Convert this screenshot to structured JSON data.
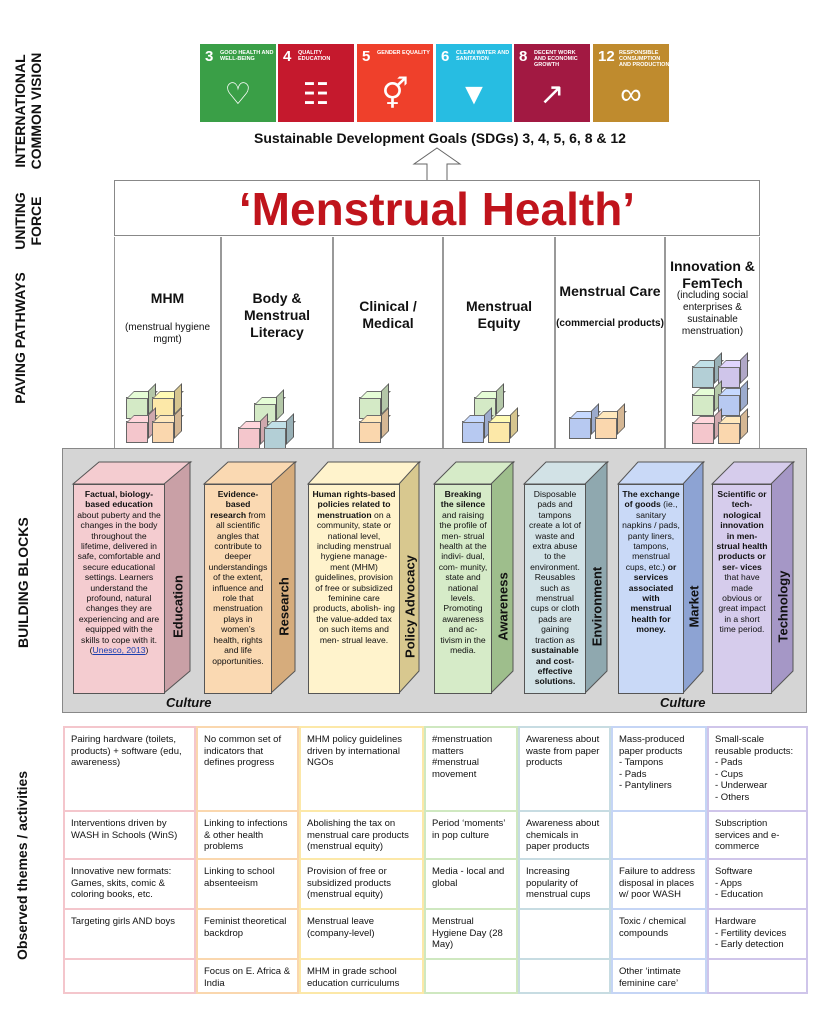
{
  "side_labels": {
    "vision": "INTERNATIONAL COMMON VISION",
    "force": "UNITING FORCE",
    "pathways": "PAVING PATHWAYS",
    "blocks": "BUILDING BLOCKS",
    "themes": "Observed themes / activities"
  },
  "sdgs": [
    {
      "num": "3",
      "text": "GOOD HEALTH AND WELL-BEING",
      "icon": "heartbeat-icon",
      "glyph": "♡",
      "color": "#3A9F47"
    },
    {
      "num": "4",
      "text": "QUALITY EDUCATION",
      "icon": "book-icon",
      "glyph": "☷",
      "color": "#C5192D"
    },
    {
      "num": "5",
      "text": "GENDER EQUALITY",
      "icon": "gender-icon",
      "glyph": "⚥",
      "color": "#EF402B"
    },
    {
      "num": "6",
      "text": "CLEAN WATER AND SANITATION",
      "icon": "water-drop-icon",
      "glyph": "▼",
      "color": "#27BDE2"
    },
    {
      "num": "8",
      "text": "DECENT WORK AND ECONOMIC GROWTH",
      "icon": "growth-chart-icon",
      "glyph": "↗",
      "color": "#A21942"
    },
    {
      "num": "12",
      "text": "RESPONSIBLE CONSUMPTION AND PRODUCTION",
      "icon": "infinity-icon",
      "glyph": "∞",
      "color": "#BF8B2E"
    }
  ],
  "sdg_caption": "Sustainable Development Goals (SDGs) 3, 4, 5, 6, 8 & 12",
  "banner_title": "‘Menstrual Health’",
  "pillars": [
    {
      "title": "MHM",
      "sub": "(menstrual hygiene mgmt)"
    },
    {
      "title": "Body & Menstrual Literacy",
      "sub": ""
    },
    {
      "title": "Clinical / Medical",
      "sub": ""
    },
    {
      "title": "Menstrual Equity",
      "sub": ""
    },
    {
      "title": "Menstrual Care",
      "sub": "(commercial products)"
    },
    {
      "title": "Innovation & FemTech",
      "sub": "(including social enterprises & sustainable menstruation)"
    }
  ],
  "blocks": [
    {
      "label": "Education",
      "color": "#F4CCD0",
      "side": "#C9A0A6",
      "bold": "Factual, biology-based education",
      "text": " about puberty and the changes in the body throughout the lifetime, delivered in safe, comfortable and secure educational settings. Learners understand the profound, natural changes they are experiencing and are equipped with the skills to cope with it. (",
      "link": "Unesco, 2013",
      "tail": ")"
    },
    {
      "label": "Research",
      "color": "#FAD9B2",
      "side": "#D6AC7C",
      "bold": "Evidence-based research",
      "text": " from all scientific angles that contribute to deeper understandings of the extent, influence and role that menstruation plays in women’s health, rights and life opportunities.",
      "link": "",
      "tail": ""
    },
    {
      "label": "Policy Advocacy",
      "color": "#FFF3CC",
      "side": "#D8C88F",
      "bold": "Human rights-based policies related to menstruation",
      "text": " on a community, state or national level, including menstrual hygiene manage- ment (MHM) guidelines, provision of free or subsidized feminine care products, abolish- ing the value-added tax on such items and men- strual leave.",
      "link": "",
      "tail": ""
    },
    {
      "label": "Awareness",
      "color": "#D6EBC8",
      "side": "#9EBE8C",
      "bold": "Breaking the silence",
      "text": " and raising the profile of men- strual health at the indivi- dual, com- munity, state and national levels. Promoting awareness and ac- tivism in the media.",
      "link": "",
      "tail": ""
    },
    {
      "label": "Environment",
      "color": "#D2E2E6",
      "side": "#8FA8AF",
      "bold": "",
      "text": "Disposable pads and tampons create a lot of waste and extra abuse to the environment. Reusables such as menstrual cups or cloth pads are gaining traction as ",
      "bold2": "sustainable and cost-effective solutions.",
      "link": "",
      "tail": ""
    },
    {
      "label": "Market",
      "color": "#C9D9F7",
      "side": "#8DA3D3",
      "bold": "The exchange of goods",
      "text": " (ie., sanitary napkins / pads, panty liners, tampons, menstrual cups, etc.) ",
      "bold2": "or services associated with menstrual health for money.",
      "link": "",
      "tail": ""
    },
    {
      "label": "Technology",
      "color": "#D6CCEC",
      "side": "#A597C6",
      "bold": "Scientific or tech- nological innovation in men- strual health products or ser- vices",
      "text": " that have made obvious or great impact in a short time period.",
      "link": "",
      "tail": ""
    }
  ],
  "culture_label": "Culture",
  "theme_colors": [
    "#F4C6CC",
    "#FAD7AE",
    "#FCE8A8",
    "#CFE8C0",
    "#C7DCE2",
    "#C5D5F5",
    "#CFC5EA"
  ],
  "themes": [
    [
      "Pairing hardware (toilets, products) + software (edu, awareness)",
      "No common set of indicators that defines progress",
      "MHM policy guidelines driven by international NGOs",
      "#menstruation matters\n#menstrual movement",
      "Awareness about waste from paper products",
      "Mass-produced paper products\n- Tampons\n- Pads\n- Pantyliners",
      "Small-scale reusable products:\n- Pads\n- Cups\n- Underwear\n- Others"
    ],
    [
      "Interventions driven by WASH in Schools (WinS)",
      "Linking to infections & other health problems",
      "Abolishing the tax on menstrual care products (menstrual equity)",
      "Period ‘moments’ in pop culture",
      "Awareness about chemicals in paper products",
      "",
      "Subscription services and e-commerce"
    ],
    [
      "Innovative new formats: Games, skits, comic & coloring books, etc.",
      "Linking to school absenteeism",
      "Provision of free or subsidized products (menstrual equity)",
      "Media - local and global",
      "Increasing popularity of menstrual cups",
      "Failure to address disposal in places w/ poor WASH",
      "Software\n- Apps\n- Education"
    ],
    [
      "Targeting girls AND boys",
      "Feminist theoretical backdrop",
      "Menstrual leave (company-level)",
      "Menstrual Hygiene Day (28 May)",
      "",
      "Toxic / chemical compounds",
      "Hardware\n- Fertility devices\n- Early detection"
    ],
    [
      "",
      "Focus on E. Africa & India",
      "MHM in grade school education curriculums",
      "",
      "",
      "Other ‘intimate feminine care’",
      ""
    ]
  ]
}
